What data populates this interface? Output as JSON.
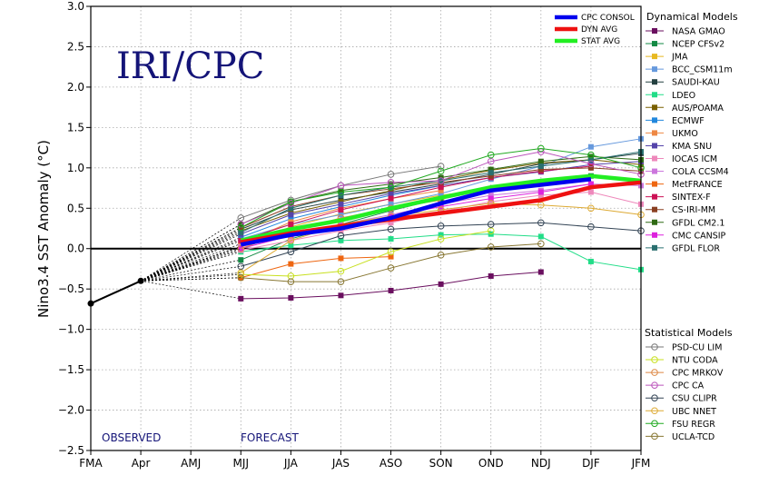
{
  "chart_data": {
    "type": "line",
    "ylabel": "Nino3.4 SST Anomaly (°C)",
    "brand": "IRI/CPC",
    "observed_label": "OBSERVED",
    "forecast_label": "FORECAST",
    "ylim": [
      -2.5,
      3.0
    ],
    "yticks": [
      "3.0",
      "2.5",
      "2.0",
      "1.5",
      "1.0",
      "0.5",
      "0.0",
      "−0.5",
      "−1.0",
      "−1.5",
      "−2.0",
      "−2.5"
    ],
    "ytick_values": [
      3.0,
      2.5,
      2.0,
      1.5,
      1.0,
      0.5,
      0.0,
      -0.5,
      -1.0,
      -1.5,
      -2.0,
      -2.5
    ],
    "categories": [
      "FMA",
      "Apr",
      "AMJ",
      "MJJ",
      "JJA",
      "JAS",
      "ASO",
      "SON",
      "OND",
      "NDJ",
      "DJF",
      "JFM"
    ],
    "grid": true,
    "observed": [
      -0.68,
      -0.4
    ],
    "averages": [
      {
        "name": "CPC CONSOL",
        "color": "#0000ee",
        "start": 3,
        "values": [
          0.05,
          0.17,
          0.25,
          0.38,
          0.56,
          0.72,
          0.79,
          0.86
        ]
      },
      {
        "name": "DYN AVG",
        "color": "#ee1111",
        "start": 3,
        "values": [
          0.08,
          0.19,
          0.28,
          0.36,
          0.44,
          0.52,
          0.6,
          0.76,
          0.82
        ]
      },
      {
        "name": "STAT AVG",
        "color": "#22ee22",
        "start": 3,
        "values": [
          0.1,
          0.24,
          0.35,
          0.5,
          0.63,
          0.76,
          0.84,
          0.9,
          0.84
        ]
      }
    ],
    "legend_groups": {
      "dynamical": "Dynamical Models",
      "statistical": "Statistical Models"
    },
    "dynamical_models": [
      {
        "name": "NASA GMAO",
        "color": "#6a0f5f",
        "start": 3,
        "values": [
          -0.62,
          -0.61,
          -0.58,
          -0.52,
          -0.44,
          -0.34,
          -0.29
        ]
      },
      {
        "name": "NCEP CFSv2",
        "color": "#138a44",
        "start": 3,
        "values": [
          -0.14,
          0.12,
          0.3,
          0.47,
          0.62,
          0.74,
          0.81,
          0.9
        ]
      },
      {
        "name": "JMA",
        "color": "#e8b920",
        "start": 3,
        "values": [
          0.03,
          0.27,
          0.43,
          0.55,
          0.66,
          0.74,
          0.8
        ]
      },
      {
        "name": "BCC_CSM11m",
        "color": "#6699dd",
        "start": 3,
        "values": [
          0.12,
          0.3,
          0.42,
          0.55,
          0.68,
          0.86,
          1.02,
          1.26,
          1.36
        ]
      },
      {
        "name": "SAUDI-KAU",
        "color": "#244040",
        "start": 3,
        "values": [
          0.24,
          0.48,
          0.6,
          0.7,
          0.8,
          0.92,
          1.05,
          1.1,
          1.18
        ]
      },
      {
        "name": "LDEO",
        "color": "#22dd88",
        "start": 3,
        "values": [
          -0.04,
          0.04,
          0.1,
          0.12,
          0.17,
          0.18,
          0.15,
          -0.16,
          -0.26
        ]
      },
      {
        "name": "AUS/POAMA",
        "color": "#7a6000",
        "start": 3,
        "values": [
          0.22,
          0.44,
          0.58,
          0.72,
          0.85,
          0.97,
          1.06,
          1.1,
          1.04
        ]
      },
      {
        "name": "ECMWF",
        "color": "#2288dd",
        "start": 3,
        "values": [
          0.14,
          0.37,
          0.52,
          0.66,
          0.78
        ]
      },
      {
        "name": "UKMO",
        "color": "#ee8844",
        "start": 3,
        "values": [
          0.06,
          0.33,
          0.5,
          0.62,
          0.72
        ]
      },
      {
        "name": "KMA SNU",
        "color": "#5544aa",
        "start": 3,
        "values": [
          0.18,
          0.42,
          0.55,
          0.68,
          0.78,
          0.88,
          0.95,
          1.04,
          1.08
        ]
      },
      {
        "name": "IOCAS ICM",
        "color": "#ee88bb",
        "start": 3,
        "values": [
          -0.02,
          0.1,
          0.22,
          0.32,
          0.46,
          0.58,
          0.66,
          0.7,
          0.55
        ]
      },
      {
        "name": "COLA CCSM4",
        "color": "#cc77dd",
        "start": 3,
        "values": [
          0.02,
          0.18,
          0.3,
          0.42,
          0.55,
          0.66,
          0.72,
          0.8,
          0.78
        ]
      },
      {
        "name": "MetFRANCE",
        "color": "#ee6611",
        "start": 3,
        "values": [
          -0.36,
          -0.19,
          -0.12,
          -0.1
        ]
      },
      {
        "name": "SINTEX-F",
        "color": "#cc1155",
        "start": 3,
        "values": [
          0.1,
          0.3,
          0.48,
          0.62,
          0.76,
          0.88,
          0.96,
          1.02
        ]
      },
      {
        "name": "CS-IRI-MM",
        "color": "#8a4022",
        "start": 3,
        "values": [
          0.26,
          0.52,
          0.66,
          0.74,
          0.82,
          0.9,
          0.98,
          1.0,
          0.96
        ]
      },
      {
        "name": "GFDL CM2.1",
        "color": "#2f6a14",
        "start": 3,
        "values": [
          0.3,
          0.58,
          0.72,
          0.8,
          0.88,
          0.98,
          1.08,
          1.14,
          1.1
        ]
      },
      {
        "name": "CMC CANSIP",
        "color": "#dd22dd",
        "start": 3,
        "values": [
          0.0,
          0.16,
          0.28,
          0.4,
          0.52,
          0.62,
          0.7,
          0.8
        ]
      },
      {
        "name": "GFDL FLOR",
        "color": "#2a7070",
        "start": 3,
        "values": [
          0.2,
          0.5,
          0.66,
          0.76,
          0.84,
          0.94,
          1.02,
          1.1,
          1.2
        ]
      }
    ],
    "statistical_models": [
      {
        "name": "PSD-CU LIM",
        "color": "#777777",
        "start": 3,
        "values": [
          0.38,
          0.6,
          0.78,
          0.92,
          1.02
        ]
      },
      {
        "name": "NTU CODA",
        "color": "#c8e020",
        "start": 3,
        "values": [
          -0.32,
          -0.34,
          -0.28,
          -0.04,
          0.12,
          0.22
        ]
      },
      {
        "name": "CPC MRKOV",
        "color": "#dd8844",
        "start": 3,
        "values": [
          0.0,
          0.22,
          0.38,
          0.5,
          0.6
        ]
      },
      {
        "name": "CPC CA",
        "color": "#bb55bb",
        "start": 3,
        "values": [
          0.3,
          0.56,
          0.78,
          0.82,
          0.84,
          1.08,
          1.2,
          1.05,
          0.92
        ]
      },
      {
        "name": "CSU CLIPR",
        "color": "#334455",
        "start": 3,
        "values": [
          -0.22,
          -0.04,
          0.16,
          0.24,
          0.28,
          0.3,
          0.32,
          0.27,
          0.22
        ]
      },
      {
        "name": "UBC NNET",
        "color": "#ddaa33",
        "start": 3,
        "values": [
          -0.3,
          0.1,
          0.3,
          0.4,
          0.48,
          0.56,
          0.54,
          0.5,
          0.42
        ]
      },
      {
        "name": "FSU REGR",
        "color": "#22aa22",
        "start": 3,
        "values": [
          0.26,
          0.58,
          0.7,
          0.76,
          0.96,
          1.16,
          1.24,
          1.16,
          1.0
        ]
      },
      {
        "name": "UCLA-TCD",
        "color": "#887733",
        "start": 3,
        "values": [
          -0.36,
          -0.41,
          -0.41,
          -0.24,
          -0.08,
          0.02,
          0.06
        ]
      }
    ]
  }
}
